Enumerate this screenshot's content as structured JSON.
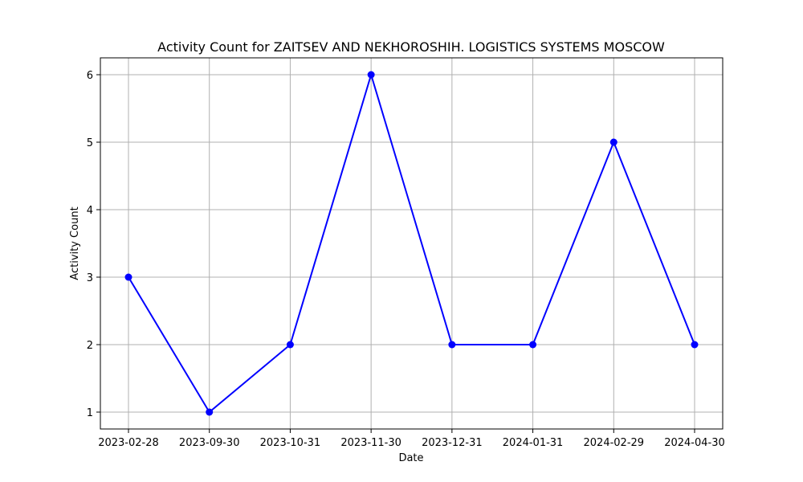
{
  "chart_data": {
    "type": "line",
    "title": "Activity Count for ZAITSEV AND NEKHOROSHIH. LOGISTICS SYSTEMS MOSCOW",
    "xlabel": "Date",
    "ylabel": "Activity Count",
    "categories": [
      "2023-02-28",
      "2023-09-30",
      "2023-10-31",
      "2023-11-30",
      "2023-12-31",
      "2024-01-31",
      "2024-02-29",
      "2024-04-30"
    ],
    "series": [
      {
        "values": [
          3,
          1,
          2,
          6,
          2,
          2,
          5,
          2
        ],
        "color": "#0000ff",
        "marker": "circle"
      }
    ],
    "yticks": [
      1,
      2,
      3,
      4,
      5,
      6
    ],
    "ylim": [
      0.75,
      6.25
    ],
    "grid": true,
    "legend": "none"
  }
}
